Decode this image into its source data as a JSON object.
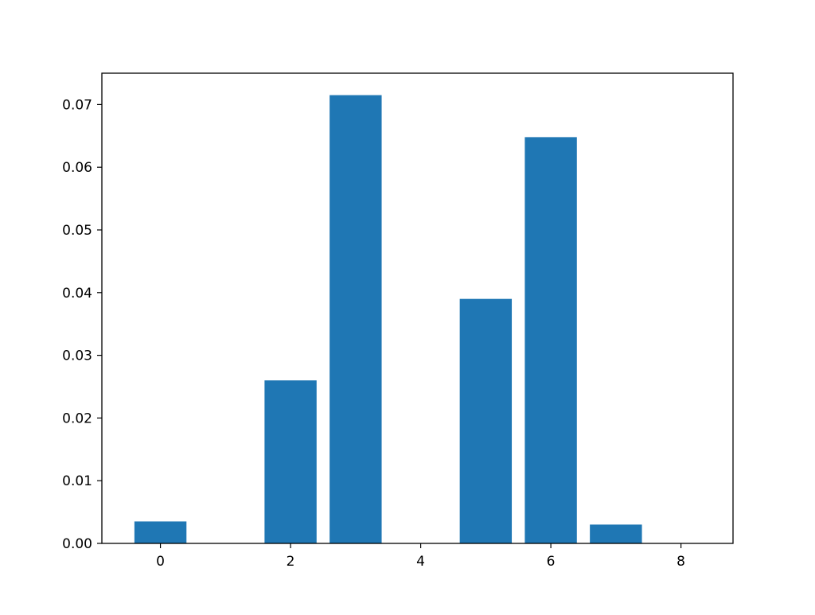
{
  "chart_data": {
    "type": "bar",
    "title": "",
    "xlabel": "",
    "ylabel": "",
    "x": [
      0,
      1,
      2,
      3,
      4,
      5,
      6,
      7,
      8
    ],
    "values": [
      0.0035,
      0,
      0.026,
      0.0715,
      0,
      0.039,
      0.0648,
      0.003,
      0
    ],
    "bar_width": 0.8,
    "xlim": [
      -0.9,
      8.8
    ],
    "ylim": [
      0,
      0.075
    ],
    "xticks": [
      0,
      2,
      4,
      6,
      8
    ],
    "xtick_labels": [
      "0",
      "2",
      "4",
      "6",
      "8"
    ],
    "yticks": [
      0,
      0.01,
      0.02,
      0.03,
      0.04,
      0.05,
      0.06,
      0.07
    ],
    "ytick_labels": [
      "0.00",
      "0.01",
      "0.02",
      "0.03",
      "0.04",
      "0.05",
      "0.06",
      "0.07"
    ],
    "grid": false,
    "bar_color": "#1f77b4"
  }
}
